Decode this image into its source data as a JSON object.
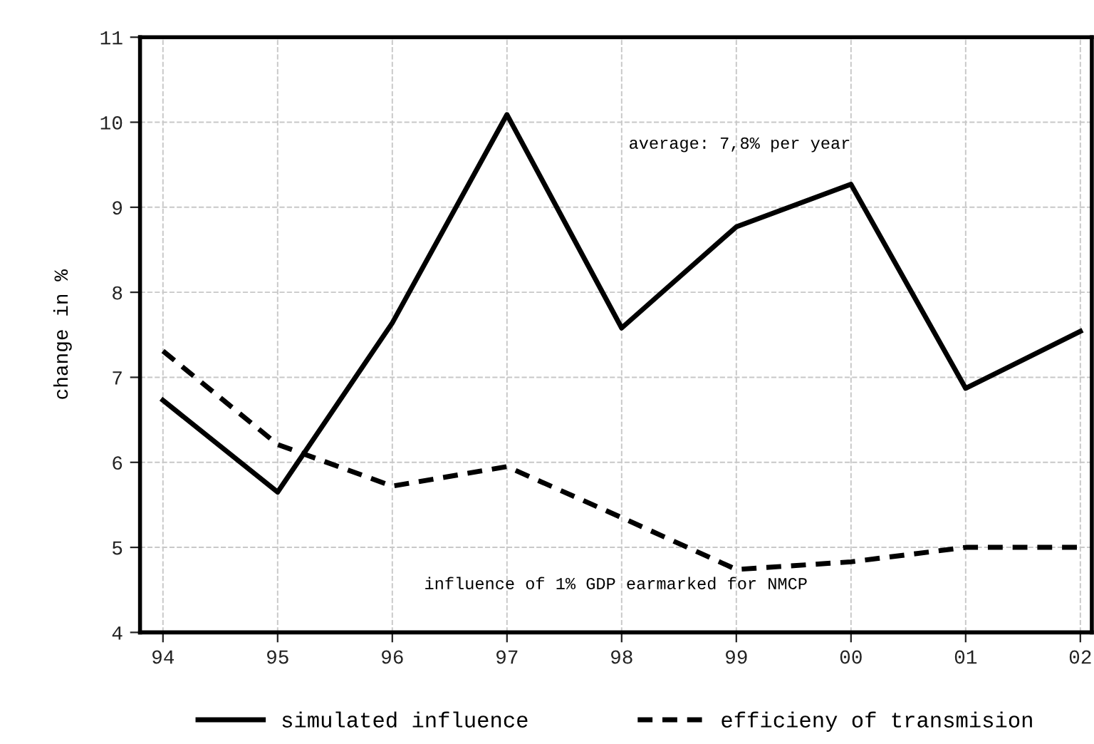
{
  "chart_data": {
    "type": "line",
    "ylabel": "change in %",
    "categories": [
      "94",
      "95",
      "96",
      "97",
      "98",
      "99",
      "00",
      "01",
      "02"
    ],
    "series": [
      {
        "name": "simulated influence",
        "color": "#000000",
        "line_style": "solid",
        "values": [
          6.73,
          5.65,
          7.64,
          10.09,
          7.58,
          8.77,
          9.27,
          6.87,
          7.54
        ]
      },
      {
        "name": "efficieny of transmision",
        "color": "#000000",
        "line_style": "dashed",
        "values": [
          7.31,
          6.21,
          5.72,
          5.95,
          5.35,
          4.74,
          4.83,
          5.0,
          5.0
        ]
      }
    ],
    "ylim": [
      4,
      11
    ],
    "yticks": [
      4,
      5,
      6,
      7,
      8,
      9,
      10,
      11
    ],
    "grid": true,
    "legend": "bottom",
    "marker": "none",
    "annotations": [
      "average: 7,8% per year",
      "influence of 1% GDP earmarked for NMCP"
    ]
  }
}
